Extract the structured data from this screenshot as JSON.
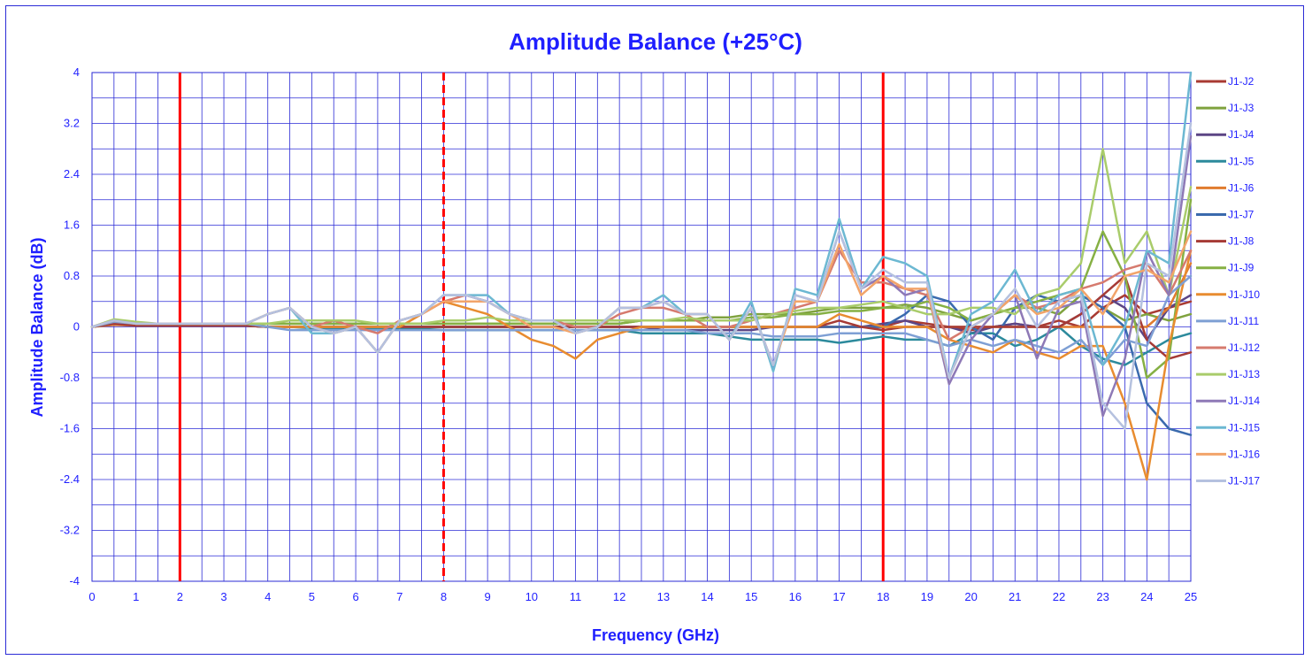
{
  "chart_data": {
    "type": "line",
    "title": "Amplitude Balance (+25°C)",
    "xlabel": "Frequency (GHz)",
    "ylabel": "Amplitude Balance (dB)",
    "xlim": [
      0,
      25
    ],
    "ylim": [
      -4,
      4
    ],
    "x_ticks": [
      0,
      1,
      2,
      3,
      4,
      5,
      6,
      7,
      8,
      9,
      10,
      11,
      12,
      13,
      14,
      15,
      16,
      17,
      18,
      19,
      20,
      21,
      22,
      23,
      24,
      25
    ],
    "y_ticks": [
      4,
      3.2,
      2.4,
      1.6,
      0.8,
      0,
      -0.8,
      -1.6,
      -2.4,
      -3.2,
      -4
    ],
    "y_tick_labels": [
      "4",
      "3.2",
      "2.4",
      "1.6",
      "0.8",
      "0",
      "-0.8",
      "-1.6",
      "-2.4",
      "-3.2",
      "-4"
    ],
    "grid": true,
    "legend_position": "right",
    "reference_lines": [
      {
        "x": 2,
        "style": "solid",
        "color": "#ff0000"
      },
      {
        "x": 8,
        "style": "dashed",
        "color": "#ff0000"
      },
      {
        "x": 18,
        "style": "solid",
        "color": "#ff0000"
      }
    ],
    "x": [
      0,
      0.5,
      1,
      1.5,
      2,
      2.5,
      3,
      3.5,
      4,
      4.5,
      5,
      5.5,
      6,
      6.5,
      7,
      7.5,
      8,
      8.5,
      9,
      9.5,
      10,
      10.5,
      11,
      11.5,
      12,
      12.5,
      13,
      13.5,
      14,
      14.5,
      15,
      15.5,
      16,
      16.5,
      17,
      17.5,
      18,
      18.5,
      19,
      19.5,
      20,
      20.5,
      21,
      21.5,
      22,
      22.5,
      23,
      23.5,
      24,
      24.5,
      25
    ],
    "series": [
      {
        "name": "J1-J2",
        "color": "#a83a32",
        "values": [
          0,
          0.05,
          0.02,
          0.02,
          0.02,
          0.02,
          0.02,
          0.02,
          0,
          0,
          0,
          0,
          0,
          0,
          0,
          0,
          0,
          0,
          0,
          0,
          0,
          0,
          0,
          0,
          0,
          0,
          0,
          0,
          0,
          0,
          0,
          0,
          0,
          0,
          0,
          0,
          0,
          0.1,
          0.05,
          0,
          -0.05,
          0,
          0.05,
          0,
          0.1,
          0,
          0.3,
          0.5,
          0.2,
          0.3,
          0.4
        ]
      },
      {
        "name": "J1-J3",
        "color": "#7fa23e",
        "values": [
          0,
          0.1,
          0.05,
          0.05,
          0.05,
          0.03,
          0.03,
          0.03,
          0.05,
          0.05,
          0.05,
          0.05,
          0.05,
          0.05,
          0.05,
          0.05,
          0.05,
          0.05,
          0.05,
          0.05,
          0.05,
          0.05,
          0.05,
          0.05,
          0.05,
          0.1,
          0.1,
          0.1,
          0.15,
          0.15,
          0.2,
          0.2,
          0.2,
          0.25,
          0.3,
          0.3,
          0.3,
          0.35,
          0.3,
          0.2,
          0.1,
          0.2,
          0.3,
          0.3,
          0.2,
          0.5,
          0.3,
          0.1,
          0.2,
          0.1,
          0.2
        ]
      },
      {
        "name": "J1-J4",
        "color": "#5c4585",
        "values": [
          0,
          0.05,
          0.03,
          0.02,
          0.02,
          0.02,
          0.02,
          0.02,
          0,
          0,
          0,
          0,
          -0.02,
          -0.02,
          -0.02,
          0,
          0,
          0,
          0,
          0,
          0,
          0,
          0,
          0,
          0,
          0,
          -0.05,
          -0.05,
          -0.05,
          -0.05,
          -0.05,
          0,
          0,
          0,
          0,
          0,
          0.05,
          0.1,
          0,
          0,
          -0.1,
          0,
          0.05,
          0,
          0,
          0.2,
          0.5,
          0.3,
          -0.2,
          0.3,
          0.5
        ]
      },
      {
        "name": "J1-J5",
        "color": "#2c8a9c",
        "values": [
          0,
          0.05,
          0.03,
          0.02,
          0.02,
          0.02,
          0.02,
          0.02,
          0,
          0,
          -0.02,
          -0.02,
          -0.03,
          -0.03,
          -0.03,
          -0.03,
          -0.05,
          -0.05,
          -0.05,
          -0.05,
          -0.05,
          -0.05,
          -0.05,
          -0.05,
          -0.05,
          -0.1,
          -0.1,
          -0.1,
          -0.1,
          -0.15,
          -0.2,
          -0.2,
          -0.2,
          -0.2,
          -0.25,
          -0.2,
          -0.15,
          -0.2,
          -0.2,
          -0.3,
          -0.1,
          -0.1,
          -0.3,
          -0.2,
          0,
          -0.3,
          -0.5,
          -0.6,
          -0.4,
          -0.2,
          -0.1
        ]
      },
      {
        "name": "J1-J6",
        "color": "#e07b2e",
        "values": [
          0,
          0.03,
          0.02,
          0.02,
          0.02,
          0.02,
          0.02,
          0.02,
          0,
          0,
          0,
          0,
          0,
          0,
          0,
          0,
          0,
          0,
          0,
          0,
          0,
          0,
          0,
          0,
          0,
          0,
          0,
          0,
          0,
          0,
          0,
          0,
          0,
          0,
          0,
          0,
          0,
          0,
          0,
          0,
          0,
          0,
          0,
          0,
          0,
          0,
          0,
          0,
          0,
          0.3,
          1
        ]
      },
      {
        "name": "J1-J7",
        "color": "#3a6aad",
        "values": [
          0,
          0.05,
          0.02,
          0.02,
          0.02,
          0.02,
          0.02,
          0.02,
          0,
          0,
          0,
          0,
          0,
          0,
          0,
          0,
          0,
          0,
          0,
          0,
          0,
          0,
          0,
          0,
          0,
          0,
          0,
          0,
          0,
          0,
          0,
          0,
          0,
          0,
          0,
          0,
          0,
          0.2,
          0.5,
          0.4,
          0,
          -0.2,
          0.3,
          0.5,
          0.4,
          0.5,
          0.3,
          0,
          -1.2,
          -1.6,
          -1.7
        ]
      },
      {
        "name": "J1-J8",
        "color": "#a63b36",
        "values": [
          0,
          0.05,
          0.02,
          0.02,
          0.02,
          0.02,
          0.02,
          0.02,
          0,
          0,
          0,
          0,
          0,
          0,
          0,
          0,
          0,
          0,
          0,
          0,
          0,
          0,
          0,
          0,
          0,
          0,
          0,
          0,
          0,
          0,
          0,
          0,
          0,
          0,
          0.1,
          0,
          -0.05,
          0,
          0,
          0,
          0,
          0,
          0,
          0,
          0,
          0.2,
          0.5,
          0.8,
          -0.2,
          -0.5,
          -0.4
        ]
      },
      {
        "name": "J1-J9",
        "color": "#86b044",
        "values": [
          0,
          0.1,
          0.05,
          0.05,
          0.05,
          0.05,
          0.05,
          0.05,
          0.05,
          0.05,
          0.05,
          0.05,
          0.05,
          0.05,
          0.05,
          0.05,
          0.05,
          0.05,
          0.05,
          0.05,
          0.05,
          0.05,
          0.05,
          0.05,
          0.05,
          0.1,
          0.1,
          0.1,
          0.1,
          0.1,
          0.15,
          0.15,
          0.2,
          0.2,
          0.25,
          0.25,
          0.3,
          0.3,
          0.4,
          0.3,
          0.1,
          0.2,
          0.3,
          0.4,
          0.5,
          0.6,
          1.5,
          0.8,
          -0.8,
          -0.5,
          2
        ]
      },
      {
        "name": "J1-J10",
        "color": "#e88c30",
        "values": [
          0,
          0.1,
          0.05,
          0.05,
          0.05,
          0.05,
          0.05,
          0.05,
          0,
          0,
          0,
          0,
          0,
          0,
          0,
          0.2,
          0.4,
          0.3,
          0.2,
          0,
          -0.2,
          -0.3,
          -0.5,
          -0.2,
          -0.1,
          0,
          0,
          0,
          0,
          0,
          0,
          0,
          0,
          0,
          0.2,
          0.1,
          0,
          0,
          0,
          -0.2,
          -0.3,
          -0.4,
          -0.2,
          -0.4,
          -0.5,
          -0.3,
          -0.3,
          -1.2,
          -2.4,
          -0.3,
          1.2
        ]
      },
      {
        "name": "J1-J11",
        "color": "#7e9fd4",
        "values": [
          0,
          0.08,
          0.05,
          0.05,
          0.05,
          0.05,
          0.05,
          0.05,
          0,
          -0.05,
          -0.05,
          -0.05,
          -0.05,
          -0.05,
          -0.05,
          -0.05,
          -0.05,
          -0.05,
          -0.05,
          -0.05,
          -0.05,
          -0.05,
          -0.05,
          -0.05,
          -0.05,
          -0.05,
          -0.05,
          -0.05,
          -0.1,
          -0.1,
          -0.1,
          -0.15,
          -0.15,
          -0.15,
          -0.1,
          -0.1,
          -0.1,
          -0.1,
          -0.2,
          -0.3,
          -0.2,
          -0.3,
          -0.2,
          -0.3,
          -0.4,
          -0.2,
          -0.6,
          -0.2,
          -0.3,
          0.5,
          0.8
        ]
      },
      {
        "name": "J1-J12",
        "color": "#d67a6e",
        "values": [
          0,
          0.1,
          0.05,
          0.05,
          0.05,
          0.05,
          0.05,
          0.05,
          0.2,
          0.3,
          0,
          0.1,
          0,
          -0.1,
          0.1,
          0.2,
          0.4,
          0.5,
          0.4,
          0.2,
          0.1,
          0.1,
          0,
          0,
          0.2,
          0.3,
          0.3,
          0.2,
          0,
          0,
          0.1,
          0.2,
          0.3,
          0.4,
          1.2,
          0.7,
          0.7,
          0.6,
          0.5,
          -0.2,
          0,
          0.2,
          0.5,
          0.3,
          0.4,
          0.6,
          0.7,
          0.9,
          1,
          0.5,
          1.2
        ]
      },
      {
        "name": "J1-J13",
        "color": "#a9cc6b",
        "values": [
          0,
          0.12,
          0.08,
          0.05,
          0.05,
          0.05,
          0.05,
          0.05,
          0.05,
          0.1,
          0.1,
          0.1,
          0.1,
          0.05,
          0.05,
          0.05,
          0.1,
          0.1,
          0.15,
          0.1,
          0.1,
          0.1,
          0.1,
          0.1,
          0.1,
          0.1,
          0.1,
          0.15,
          0.1,
          0.1,
          0.1,
          0.2,
          0.25,
          0.3,
          0.3,
          0.35,
          0.4,
          0.3,
          0.2,
          0.2,
          0.3,
          0.3,
          0.2,
          0.5,
          0.6,
          1,
          2.8,
          1,
          1.5,
          0.5,
          2.2
        ]
      },
      {
        "name": "J1-J14",
        "color": "#8e79b6",
        "values": [
          0,
          0.1,
          0.05,
          0.05,
          0.05,
          0.05,
          0.05,
          0.05,
          0.2,
          0.3,
          0,
          -0.1,
          0,
          -0.4,
          0.1,
          0.2,
          0.5,
          0.5,
          0.4,
          0.2,
          0.1,
          0.1,
          -0.1,
          0,
          0.3,
          0.3,
          0.4,
          0.2,
          0.2,
          -0.2,
          0.3,
          -0.6,
          0.5,
          0.4,
          1.5,
          0.6,
          0.8,
          0.5,
          0.6,
          -0.9,
          -0.2,
          0.2,
          0.5,
          -0.5,
          0.3,
          0.4,
          -1.4,
          -0.5,
          1.2,
          0.5,
          3
        ]
      },
      {
        "name": "J1-J15",
        "color": "#6cb8d2",
        "values": [
          0,
          0.1,
          0.05,
          0.05,
          0.05,
          0.05,
          0.05,
          0.05,
          0.2,
          0.3,
          -0.1,
          -0.1,
          0,
          -0.4,
          0.1,
          0.2,
          0.5,
          0.5,
          0.5,
          0.2,
          0.1,
          0.1,
          -0.1,
          0,
          0.3,
          0.3,
          0.5,
          0.2,
          0.2,
          -0.2,
          0.4,
          -0.7,
          0.6,
          0.5,
          1.7,
          0.6,
          1.1,
          1,
          0.8,
          -0.8,
          0.2,
          0.4,
          0.9,
          0.2,
          0.5,
          0.6,
          -0.6,
          0,
          1.2,
          1,
          4
        ]
      },
      {
        "name": "J1-J16",
        "color": "#f2a46a",
        "values": [
          0,
          0.1,
          0.05,
          0.05,
          0.05,
          0.05,
          0.05,
          0.05,
          0.2,
          0.3,
          0,
          -0.1,
          0,
          -0.4,
          0.1,
          0.2,
          0.4,
          0.4,
          0.4,
          0.2,
          0,
          0,
          -0.1,
          0,
          0.3,
          0.3,
          0.4,
          0.2,
          0.2,
          -0.2,
          0.3,
          -0.6,
          0.4,
          0.4,
          1.3,
          0.5,
          0.8,
          0.6,
          0.6,
          -0.8,
          0,
          0.2,
          0.5,
          0.2,
          0.3,
          0.6,
          0.2,
          0.8,
          0.9,
          0.7,
          1.5
        ]
      },
      {
        "name": "J1-J17",
        "color": "#b5c1df",
        "values": [
          0,
          0.1,
          0.05,
          0.05,
          0.05,
          0.05,
          0.05,
          0.05,
          0.2,
          0.3,
          0,
          -0.1,
          0,
          -0.4,
          0.1,
          0.2,
          0.5,
          0.5,
          0.4,
          0.2,
          0.1,
          0.1,
          -0.1,
          0,
          0.3,
          0.3,
          0.4,
          0.2,
          0.2,
          -0.2,
          0.3,
          -0.6,
          0.5,
          0.4,
          1.5,
          0.6,
          0.9,
          0.7,
          0.7,
          -0.8,
          0,
          0.2,
          0.6,
          0,
          0.4,
          0.5,
          -1.2,
          -1.6,
          1,
          0.8,
          3.2
        ]
      }
    ]
  }
}
